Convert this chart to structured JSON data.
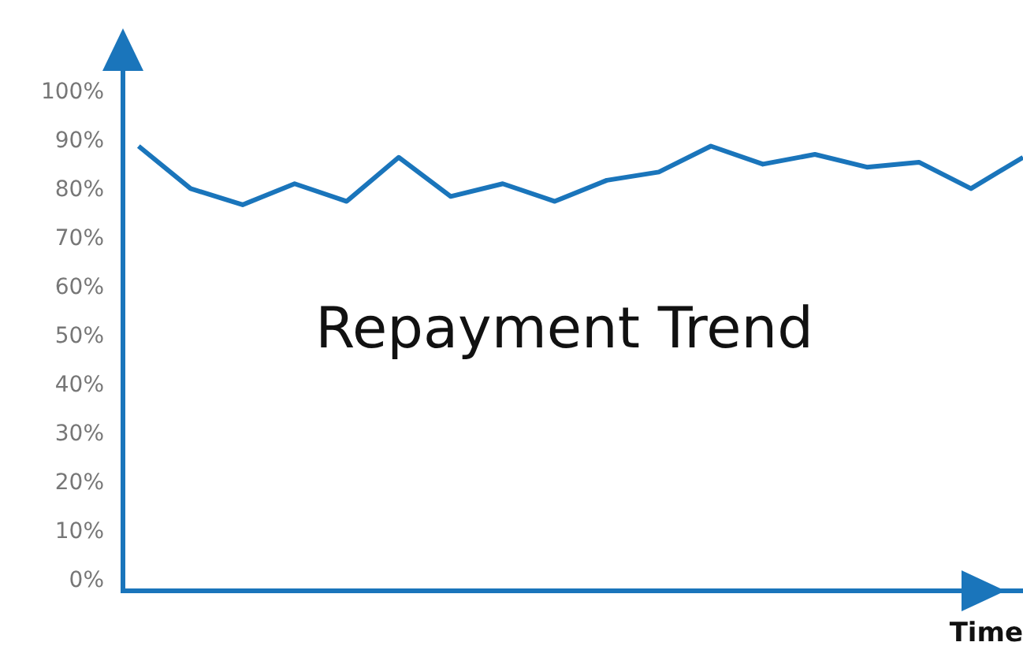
{
  "chart_data": {
    "type": "line",
    "title": "Repayment Trend",
    "xlabel": "Time",
    "categories": [
      null,
      null,
      null,
      null,
      null,
      null,
      null,
      null,
      null,
      null,
      null,
      null,
      null,
      null,
      null,
      null,
      null,
      null
    ],
    "series": [
      {
        "color": "#1a75bb",
        "values": [
          89,
          80.3,
          77,
          81.3,
          77.7,
          86.7,
          78.7,
          81.3,
          77.7,
          82,
          83.7,
          89,
          85.3,
          87.3,
          84.7,
          85.7,
          80.3,
          86.7
        ]
      }
    ],
    "ylim": [
      -2,
      106
    ],
    "yticks": [
      {
        "value": 0,
        "label": "0%"
      },
      {
        "value": 10,
        "label": "10%"
      },
      {
        "value": 20,
        "label": "20%"
      },
      {
        "value": 30,
        "label": "30%"
      },
      {
        "value": 40,
        "label": "40%"
      },
      {
        "value": 50,
        "label": "50%"
      },
      {
        "value": 60,
        "label": "60%"
      },
      {
        "value": 70,
        "label": "70%"
      },
      {
        "value": 80,
        "label": "80%"
      },
      {
        "value": 90,
        "label": "90%"
      },
      {
        "value": 100,
        "label": "100%"
      }
    ],
    "tick_labels": "y",
    "grid": false,
    "legend": false,
    "marker": "none",
    "line_style": "solid"
  }
}
